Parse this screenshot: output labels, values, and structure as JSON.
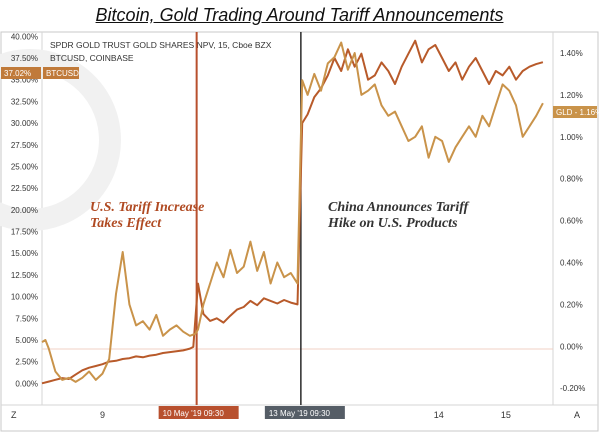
{
  "page": {
    "title": "Bitcoin, Gold Trading Around Tariff Announcements"
  },
  "symbols": {
    "gold": "SPDR GOLD TRUST GOLD SHARES NPV, 15, Cboe BZX",
    "btc": "BTCUSD, COINBASE"
  },
  "badges": {
    "btc_last": "37.02%",
    "btc_name": "BTCUSD",
    "gld_last": "GLD - 1.16%"
  },
  "annotations": {
    "us_tariff": [
      "U.S. Tariff Increase",
      "Takes Effect"
    ],
    "china_tariff": [
      "China Announces Tariff",
      "Hike on U.S. Products"
    ]
  },
  "events": {
    "us": {
      "label": "10 May '19   09:30",
      "x": 3.4
    },
    "china": {
      "label": "13 May '19   09:30",
      "x": 4.95
    }
  },
  "corner_buttons": {
    "left": "Z",
    "right": "A"
  },
  "colors": {
    "btc": "#b85a2a",
    "gld": "#c9934a",
    "us_line": "#b8502e",
    "china_line": "#2a2a2a",
    "badge_btc": "#c07a3a",
    "badge_gld": "#c9934a",
    "badge_us": "#b8502e",
    "badge_china": "#555d66"
  },
  "chart_data": {
    "type": "line",
    "x_axis": {
      "ticks": [
        {
          "label": "9",
          "x": 2
        },
        {
          "label": "14",
          "x": 7
        },
        {
          "label": "15",
          "x": 8
        }
      ],
      "range": [
        1.1,
        8.7
      ]
    },
    "left_axis": {
      "ticks": [
        "0.00%",
        "2.50%",
        "5.00%",
        "7.50%",
        "10.00%",
        "12.50%",
        "15.00%",
        "17.50%",
        "20.00%",
        "22.50%",
        "25.00%",
        "27.50%",
        "30.00%",
        "32.50%",
        "35.00%",
        "37.50%",
        "40.00%"
      ],
      "range": [
        -2.5,
        40.5
      ]
    },
    "right_axis": {
      "ticks": [
        "-0.20%",
        "0.00%",
        "0.20%",
        "0.40%",
        "0.60%",
        "0.80%",
        "1.00%",
        "1.20%",
        "1.40%"
      ],
      "range": [
        -0.28,
        1.5
      ]
    },
    "series": [
      {
        "name": "BTCUSD",
        "axis": "left",
        "points": [
          [
            1.1,
            0.0
          ],
          [
            1.2,
            0.2
          ],
          [
            1.3,
            0.4
          ],
          [
            1.4,
            0.6
          ],
          [
            1.5,
            0.5
          ],
          [
            1.6,
            1.0
          ],
          [
            1.7,
            1.5
          ],
          [
            1.8,
            1.8
          ],
          [
            1.9,
            2.0
          ],
          [
            2.0,
            2.2
          ],
          [
            2.1,
            2.5
          ],
          [
            2.2,
            2.6
          ],
          [
            2.3,
            2.8
          ],
          [
            2.4,
            2.9
          ],
          [
            2.5,
            3.1
          ],
          [
            2.6,
            3.0
          ],
          [
            2.7,
            3.2
          ],
          [
            2.8,
            3.3
          ],
          [
            2.9,
            3.5
          ],
          [
            3.0,
            3.6
          ],
          [
            3.1,
            3.7
          ],
          [
            3.2,
            3.8
          ],
          [
            3.3,
            4.0
          ],
          [
            3.35,
            4.2
          ],
          [
            3.42,
            11.5
          ],
          [
            3.5,
            8.0
          ],
          [
            3.6,
            7.2
          ],
          [
            3.7,
            7.5
          ],
          [
            3.8,
            7.0
          ],
          [
            3.9,
            7.8
          ],
          [
            4.0,
            8.5
          ],
          [
            4.1,
            8.8
          ],
          [
            4.2,
            9.5
          ],
          [
            4.3,
            9.0
          ],
          [
            4.4,
            9.8
          ],
          [
            4.5,
            9.5
          ],
          [
            4.6,
            9.2
          ],
          [
            4.7,
            9.6
          ],
          [
            4.8,
            9.3
          ],
          [
            4.9,
            9.1
          ],
          [
            4.97,
            30.0
          ],
          [
            5.05,
            31.0
          ],
          [
            5.15,
            33.0
          ],
          [
            5.25,
            34.0
          ],
          [
            5.35,
            35.5
          ],
          [
            5.45,
            37.5
          ],
          [
            5.55,
            36.0
          ],
          [
            5.65,
            38.5
          ],
          [
            5.75,
            36.5
          ],
          [
            5.85,
            38.0
          ],
          [
            5.95,
            35.0
          ],
          [
            6.05,
            35.5
          ],
          [
            6.15,
            37.0
          ],
          [
            6.25,
            36.0
          ],
          [
            6.35,
            34.5
          ],
          [
            6.45,
            36.5
          ],
          [
            6.55,
            38.0
          ],
          [
            6.65,
            39.5
          ],
          [
            6.75,
            37.0
          ],
          [
            6.85,
            38.5
          ],
          [
            6.95,
            39.0
          ],
          [
            7.05,
            37.5
          ],
          [
            7.15,
            36.0
          ],
          [
            7.25,
            37.0
          ],
          [
            7.35,
            35.0
          ],
          [
            7.45,
            36.5
          ],
          [
            7.55,
            37.5
          ],
          [
            7.65,
            36.0
          ],
          [
            7.75,
            34.5
          ],
          [
            7.85,
            36.0
          ],
          [
            7.95,
            35.5
          ],
          [
            8.05,
            36.5
          ],
          [
            8.15,
            35.0
          ],
          [
            8.25,
            36.0
          ],
          [
            8.35,
            36.5
          ],
          [
            8.45,
            36.8
          ],
          [
            8.55,
            37.02
          ]
        ]
      },
      {
        "name": "GLD",
        "axis": "right",
        "points": [
          [
            1.1,
            0.02
          ],
          [
            1.15,
            0.03
          ],
          [
            1.2,
            -0.01
          ],
          [
            1.3,
            -0.12
          ],
          [
            1.4,
            -0.16
          ],
          [
            1.5,
            -0.15
          ],
          [
            1.6,
            -0.17
          ],
          [
            1.7,
            -0.15
          ],
          [
            1.8,
            -0.12
          ],
          [
            1.9,
            -0.16
          ],
          [
            2.0,
            -0.13
          ],
          [
            2.1,
            -0.06
          ],
          [
            2.2,
            0.25
          ],
          [
            2.3,
            0.45
          ],
          [
            2.4,
            0.2
          ],
          [
            2.5,
            0.1
          ],
          [
            2.6,
            0.12
          ],
          [
            2.7,
            0.08
          ],
          [
            2.8,
            0.15
          ],
          [
            2.9,
            0.05
          ],
          [
            3.0,
            0.08
          ],
          [
            3.1,
            0.1
          ],
          [
            3.2,
            0.07
          ],
          [
            3.3,
            0.05
          ],
          [
            3.38,
            0.06
          ],
          [
            3.42,
            0.08
          ],
          [
            3.5,
            0.2
          ],
          [
            3.6,
            0.3
          ],
          [
            3.7,
            0.4
          ],
          [
            3.8,
            0.33
          ],
          [
            3.9,
            0.46
          ],
          [
            4.0,
            0.35
          ],
          [
            4.1,
            0.38
          ],
          [
            4.2,
            0.5
          ],
          [
            4.3,
            0.36
          ],
          [
            4.4,
            0.45
          ],
          [
            4.5,
            0.3
          ],
          [
            4.6,
            0.4
          ],
          [
            4.7,
            0.33
          ],
          [
            4.8,
            0.35
          ],
          [
            4.9,
            0.3
          ],
          [
            4.97,
            1.27
          ],
          [
            5.05,
            1.2
          ],
          [
            5.15,
            1.3
          ],
          [
            5.25,
            1.22
          ],
          [
            5.35,
            1.35
          ],
          [
            5.45,
            1.38
          ],
          [
            5.55,
            1.45
          ],
          [
            5.65,
            1.32
          ],
          [
            5.75,
            1.4
          ],
          [
            5.85,
            1.2
          ],
          [
            5.95,
            1.22
          ],
          [
            6.05,
            1.25
          ],
          [
            6.15,
            1.15
          ],
          [
            6.25,
            1.1
          ],
          [
            6.35,
            1.12
          ],
          [
            6.45,
            1.05
          ],
          [
            6.55,
            0.98
          ],
          [
            6.65,
            1.0
          ],
          [
            6.75,
            1.05
          ],
          [
            6.85,
            0.9
          ],
          [
            6.95,
            1.0
          ],
          [
            7.05,
            0.98
          ],
          [
            7.15,
            0.88
          ],
          [
            7.25,
            0.95
          ],
          [
            7.35,
            1.0
          ],
          [
            7.45,
            1.05
          ],
          [
            7.55,
            1.0
          ],
          [
            7.65,
            1.1
          ],
          [
            7.75,
            1.05
          ],
          [
            7.85,
            1.15
          ],
          [
            7.95,
            1.25
          ],
          [
            8.05,
            1.22
          ],
          [
            8.15,
            1.15
          ],
          [
            8.25,
            1.0
          ],
          [
            8.35,
            1.05
          ],
          [
            8.45,
            1.1
          ],
          [
            8.55,
            1.16
          ]
        ]
      }
    ]
  }
}
